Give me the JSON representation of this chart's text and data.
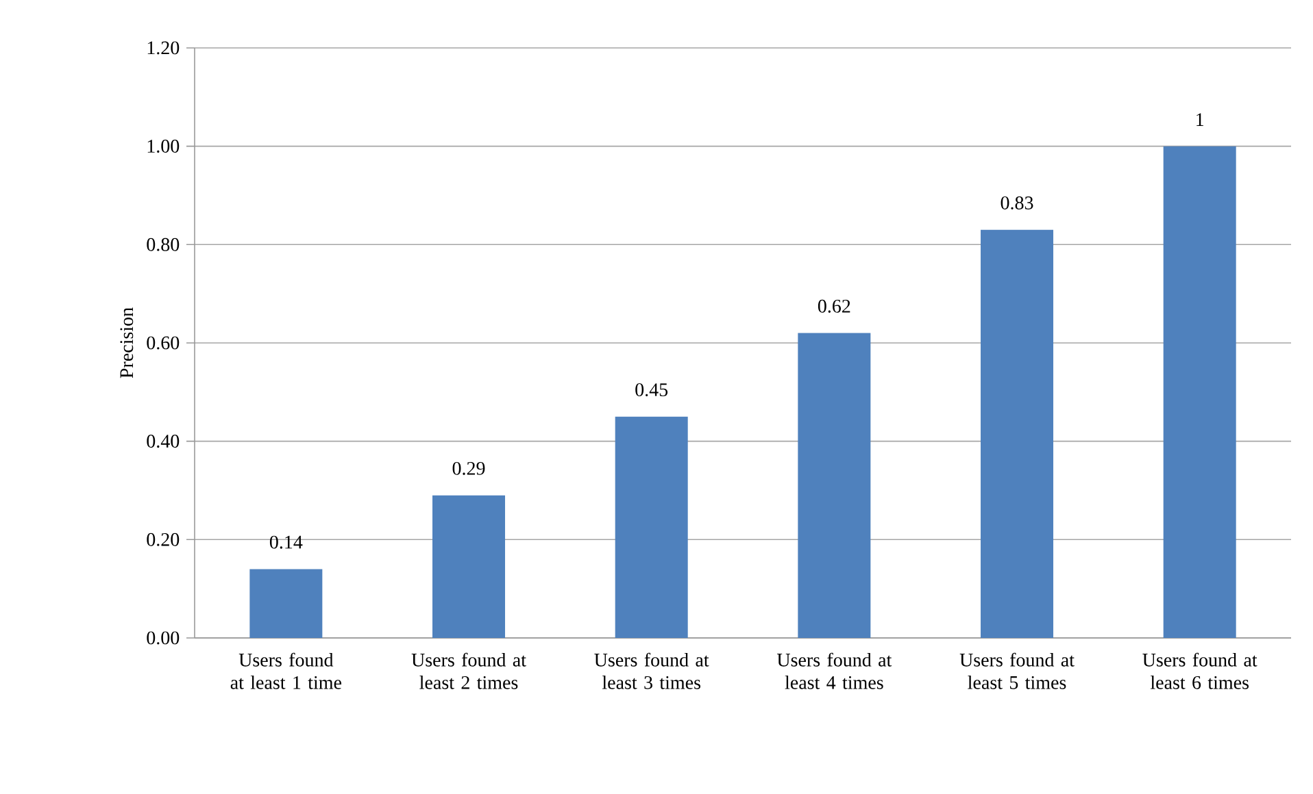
{
  "chart_data": {
    "type": "bar",
    "ylabel": "Precision",
    "categories": [
      "Users found at least 1 time",
      "Users found at least 2 times",
      "Users found at least 3 times",
      "Users found at least 4 times",
      "Users found at least 5 times",
      "Users found at least 6 times"
    ],
    "values": [
      0.14,
      0.29,
      0.45,
      0.62,
      0.83,
      1
    ],
    "color": "#4f81bd",
    "ylim": [
      0,
      1.2
    ],
    "yticks": [
      {
        "value": 0,
        "label": "0.00"
      },
      {
        "value": 0.2,
        "label": "0.20"
      },
      {
        "value": 0.4,
        "label": "0.40"
      },
      {
        "value": 0.6,
        "label": "0.60"
      },
      {
        "value": 0.8,
        "label": "0.80"
      },
      {
        "value": 1,
        "label": "1.00"
      },
      {
        "value": 1.2,
        "label": "1.20"
      }
    ],
    "grid": "y",
    "data_labels": true
  }
}
